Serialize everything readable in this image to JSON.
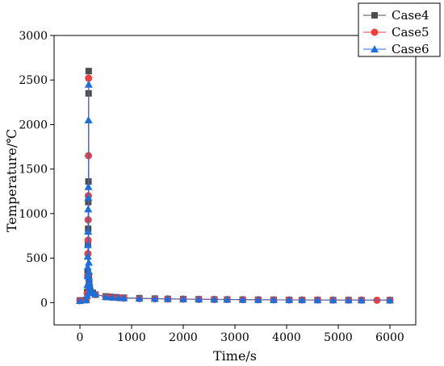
{
  "chart_data": {
    "type": "scatter",
    "xlabel": "Time/s",
    "ylabel": "Temperature/℃",
    "xlim": [
      -500,
      6500
    ],
    "ylim": [
      -250,
      3000
    ],
    "xticks": [
      0,
      1000,
      2000,
      3000,
      4000,
      5000,
      6000
    ],
    "yticks": [
      0,
      500,
      1000,
      1500,
      2000,
      2500,
      3000
    ],
    "grid": false,
    "legend_position": "top-right",
    "series": [
      {
        "name": "Case4",
        "color": "#4d4d4d",
        "marker": "square",
        "points": [
          [
            0,
            25
          ],
          [
            120,
            30
          ],
          [
            140,
            120
          ],
          [
            150,
            350
          ],
          [
            155,
            650
          ],
          [
            160,
            830
          ],
          [
            162,
            1130
          ],
          [
            165,
            1360
          ],
          [
            168,
            2350
          ],
          [
            170,
            2600
          ],
          [
            172,
            300
          ],
          [
            175,
            250
          ],
          [
            180,
            200
          ],
          [
            185,
            170
          ],
          [
            190,
            150
          ],
          [
            200,
            130
          ],
          [
            250,
            110
          ],
          [
            300,
            90
          ],
          [
            500,
            70
          ],
          [
            600,
            65
          ],
          [
            700,
            60
          ],
          [
            850,
            55
          ],
          [
            1150,
            50
          ],
          [
            1450,
            45
          ],
          [
            1700,
            42
          ],
          [
            2000,
            40
          ],
          [
            2300,
            38
          ],
          [
            2600,
            36
          ],
          [
            2850,
            35
          ],
          [
            3150,
            34
          ],
          [
            3450,
            33
          ],
          [
            3750,
            32
          ],
          [
            4050,
            31
          ],
          [
            4300,
            30
          ],
          [
            4600,
            30
          ],
          [
            4900,
            29
          ],
          [
            5200,
            29
          ],
          [
            5450,
            28
          ],
          [
            6000,
            28
          ]
        ]
      },
      {
        "name": "Case5",
        "color": "#e8413f",
        "marker": "circle",
        "points": [
          [
            0,
            22
          ],
          [
            120,
            30
          ],
          [
            140,
            100
          ],
          [
            150,
            300
          ],
          [
            155,
            550
          ],
          [
            158,
            700
          ],
          [
            160,
            930
          ],
          [
            163,
            1200
          ],
          [
            165,
            1650
          ],
          [
            168,
            2520
          ],
          [
            172,
            200
          ],
          [
            175,
            180
          ],
          [
            180,
            160
          ],
          [
            190,
            140
          ],
          [
            200,
            120
          ],
          [
            300,
            90
          ],
          [
            500,
            65
          ],
          [
            620,
            60
          ],
          [
            750,
            55
          ],
          [
            850,
            50
          ],
          [
            1150,
            45
          ],
          [
            1450,
            42
          ],
          [
            1700,
            40
          ],
          [
            2000,
            38
          ],
          [
            2300,
            36
          ],
          [
            2600,
            35
          ],
          [
            2850,
            34
          ],
          [
            3150,
            33
          ],
          [
            3450,
            32
          ],
          [
            3750,
            31
          ],
          [
            4050,
            30
          ],
          [
            4300,
            30
          ],
          [
            4600,
            29
          ],
          [
            4900,
            28
          ],
          [
            5200,
            28
          ],
          [
            5450,
            28
          ],
          [
            5750,
            27
          ],
          [
            6000,
            27
          ]
        ]
      },
      {
        "name": "Case6",
        "color": "#1f6fd9",
        "marker": "triangle",
        "points": [
          [
            0,
            20
          ],
          [
            120,
            30
          ],
          [
            140,
            80
          ],
          [
            145,
            200
          ],
          [
            148,
            300
          ],
          [
            150,
            400
          ],
          [
            152,
            520
          ],
          [
            155,
            650
          ],
          [
            158,
            800
          ],
          [
            160,
            1050
          ],
          [
            162,
            1180
          ],
          [
            164,
            1300
          ],
          [
            166,
            2050
          ],
          [
            170,
            2450
          ],
          [
            172,
            450
          ],
          [
            175,
            350
          ],
          [
            178,
            280
          ],
          [
            180,
            230
          ],
          [
            185,
            200
          ],
          [
            190,
            180
          ],
          [
            195,
            160
          ],
          [
            200,
            140
          ],
          [
            220,
            125
          ],
          [
            250,
            110
          ],
          [
            300,
            95
          ],
          [
            500,
            65
          ],
          [
            620,
            60
          ],
          [
            750,
            55
          ],
          [
            850,
            52
          ],
          [
            1150,
            48
          ],
          [
            1450,
            45
          ],
          [
            1700,
            43
          ],
          [
            2000,
            41
          ],
          [
            2300,
            39
          ],
          [
            2600,
            37
          ],
          [
            2850,
            35
          ],
          [
            3150,
            34
          ],
          [
            3450,
            33
          ],
          [
            3750,
            32
          ],
          [
            4050,
            31
          ],
          [
            4300,
            31
          ],
          [
            4600,
            30
          ],
          [
            4900,
            30
          ],
          [
            5200,
            29
          ],
          [
            5450,
            29
          ],
          [
            6000,
            28
          ]
        ]
      }
    ]
  }
}
